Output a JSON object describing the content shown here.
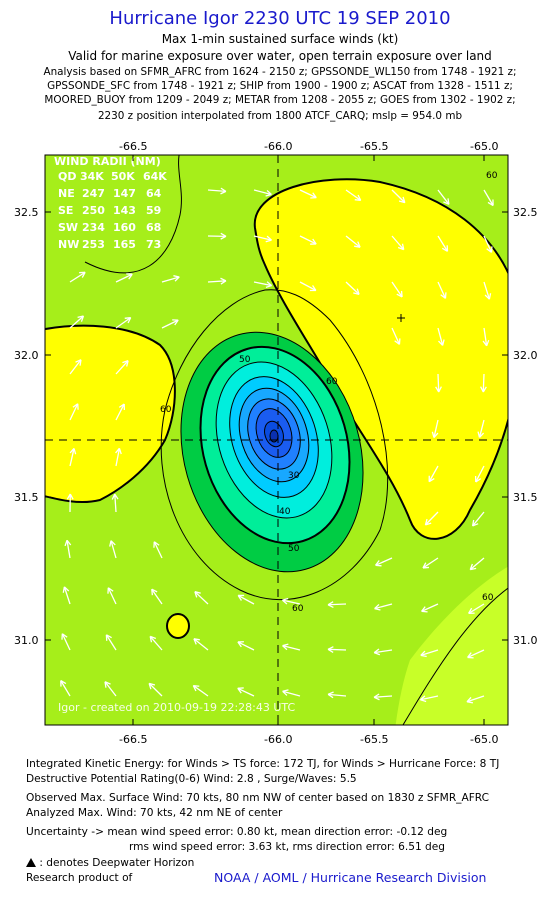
{
  "header": {
    "title": "Hurricane Igor 2230 UTC 19 SEP 2010",
    "subtitle1": "Max 1-min sustained surface winds (kt)",
    "subtitle2": "Valid for marine exposure over water, open terrain exposure over land",
    "analysis_lines": [
      "Analysis based on SFMR_AFRC from 1624 - 2150 z; GPSSONDE_WL150 from 1748 - 1921 z;",
      "GPSSONDE_SFC from 1748 - 1921 z; SHIP from 1900 - 1900 z; ASCAT from 1328 - 1511 z;",
      "MOORED_BUOY from 1209 - 2049 z; METAR from 1208 - 2055 z; GOES from 1302 - 1902 z;",
      "2230 z position interpolated from 1800 ATCF_CARQ; mslp = 954.0 mb"
    ]
  },
  "map": {
    "lon_ticks": [
      "-66.5",
      "-66.0",
      "-65.5",
      "-65.0"
    ],
    "lat_ticks": [
      "32.5",
      "32.0",
      "31.5",
      "31.0"
    ],
    "contour_labels": [
      "60",
      "60",
      "60",
      "60",
      "50",
      "50",
      "40",
      "30",
      "60"
    ],
    "wind_radii": {
      "title": "WIND RADII (NM)",
      "header": [
        "QD",
        "34K",
        "50K",
        "64K"
      ],
      "rows": [
        [
          "NE",
          "247",
          "147",
          "64"
        ],
        [
          "SE",
          "250",
          "143",
          "59"
        ],
        [
          "SW",
          "234",
          "160",
          "68"
        ],
        [
          "NW",
          "253",
          "165",
          "73"
        ]
      ]
    },
    "watermark": "Igor - created on 2010-09-19 22:28:43 UTC",
    "colors": {
      "lt60": "#a6ee1a",
      "ge60": "#ffff00",
      "band_50_60": "#00cc44",
      "band_40_50": "#00ee99",
      "band_30_40": "#00eedd",
      "band_20_30": "#00ccff",
      "core": "#0a4ce0"
    }
  },
  "footer": {
    "ike": "Integrated Kinetic Energy:  for Winds > TS force: 172 TJ,  for Winds > Hurricane Force: 8 TJ",
    "dpr": "Destructive Potential Rating(0-6)   Wind: 2.8 , Surge/Waves: 5.5",
    "obs": "Observed Max. Surface Wind: 70 kts, 80 nm NW of center based on 1830 z SFMR_AFRC",
    "ana": "Analyzed Max. Wind: 70 kts, 42 nm NE of center",
    "unc1": "Uncertainty -> mean wind speed error: 0.80 kt,   mean direction error:  -0.12 deg",
    "unc2": "rms wind speed error: 3.63 kt,   rms direction error: 6.51 deg",
    "legend": ": denotes Deepwater Horizon",
    "research": "Research product of",
    "org": "NOAA / AOML / Hurricane Research Division"
  }
}
